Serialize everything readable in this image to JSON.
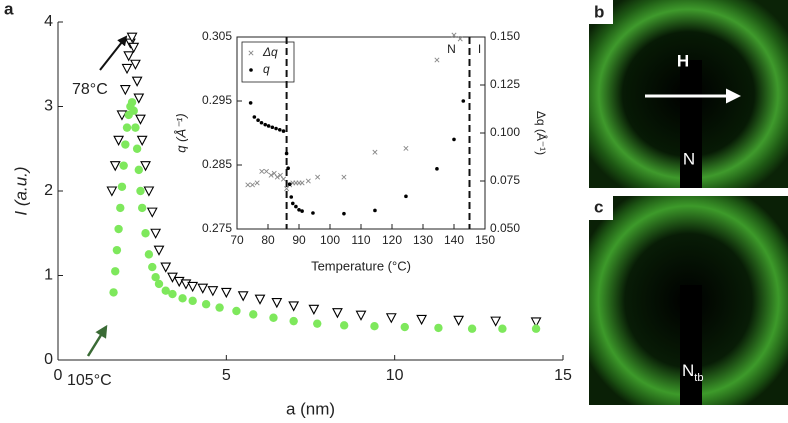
{
  "chart_data": [
    {
      "type": "scatter",
      "panel_label": "a",
      "x_label": "a (nm)",
      "y_label": "I (a.u.)",
      "xlim": [
        0,
        15
      ],
      "xticks": [
        0,
        5,
        10,
        15
      ],
      "ylim": [
        0,
        4
      ],
      "yticks": [
        0,
        1,
        2,
        3,
        4
      ],
      "series": [
        {
          "name": "78°C",
          "color": "#000000",
          "marker": "triangle-down",
          "x": [
            1.6,
            1.7,
            1.8,
            1.9,
            2.0,
            2.05,
            2.1,
            2.15,
            2.2,
            2.25,
            2.3,
            2.35,
            2.4,
            2.45,
            2.5,
            2.6,
            2.7,
            2.8,
            2.9,
            3.0,
            3.2,
            3.4,
            3.6,
            3.8,
            4.0,
            4.3,
            4.6,
            5.0,
            5.5,
            6.0,
            6.5,
            7.0,
            7.6,
            8.3,
            9.0,
            9.9,
            10.8,
            11.9,
            13.0,
            14.2
          ],
          "values": [
            2.0,
            2.3,
            2.6,
            2.9,
            3.2,
            3.45,
            3.6,
            3.75,
            3.82,
            3.7,
            3.5,
            3.3,
            3.1,
            2.85,
            2.6,
            2.3,
            2.0,
            1.75,
            1.5,
            1.3,
            1.1,
            0.98,
            0.93,
            0.9,
            0.87,
            0.85,
            0.82,
            0.8,
            0.76,
            0.72,
            0.68,
            0.64,
            0.6,
            0.56,
            0.53,
            0.5,
            0.48,
            0.47,
            0.46,
            0.45
          ]
        },
        {
          "name": "105°C",
          "color": "#7ee85c",
          "marker": "circle",
          "x": [
            1.65,
            1.7,
            1.75,
            1.8,
            1.85,
            1.9,
            1.95,
            2.0,
            2.05,
            2.1,
            2.15,
            2.2,
            2.25,
            2.3,
            2.35,
            2.4,
            2.45,
            2.5,
            2.6,
            2.7,
            2.8,
            2.9,
            3.0,
            3.2,
            3.4,
            3.7,
            4.0,
            4.4,
            4.8,
            5.3,
            5.8,
            6.4,
            7.0,
            7.7,
            8.5,
            9.4,
            10.3,
            11.3,
            12.3,
            13.2,
            14.2
          ],
          "values": [
            0.8,
            1.05,
            1.3,
            1.55,
            1.8,
            2.05,
            2.3,
            2.55,
            2.75,
            2.9,
            3.0,
            3.05,
            2.95,
            2.75,
            2.5,
            2.25,
            2.0,
            1.8,
            1.5,
            1.25,
            1.1,
            0.98,
            0.9,
            0.82,
            0.78,
            0.73,
            0.7,
            0.66,
            0.62,
            0.58,
            0.54,
            0.5,
            0.46,
            0.43,
            0.41,
            0.4,
            0.39,
            0.38,
            0.37,
            0.37,
            0.37
          ]
        }
      ]
    },
    {
      "type": "scatter",
      "x_label": "Temperature (°C)",
      "y_label": "q (Å⁻¹)",
      "y2_label": "Δq (Å⁻¹)",
      "xlim": [
        70,
        150
      ],
      "xticks": [
        70,
        80,
        90,
        100,
        110,
        120,
        130,
        140,
        150
      ],
      "ylim": [
        0.275,
        0.305
      ],
      "yticks": [
        0.275,
        0.285,
        0.295,
        0.305
      ],
      "y2lim": [
        0.05,
        0.15
      ],
      "y2ticks": [
        {
          "value": 0.05,
          "label": "0.050"
        },
        0.075,
        {
          "value": 0.1,
          "label": "0.100"
        },
        0.125,
        {
          "value": 0.15,
          "label": "0.150"
        }
      ],
      "transition_temps": [
        86,
        145
      ],
      "phase_labels": [
        "N",
        "I"
      ],
      "series": [
        {
          "name": "Δq",
          "color": "#888888",
          "marker": "x",
          "axis": "y2",
          "x": [
            73.5,
            75,
            76.5,
            78,
            79.5,
            81,
            82,
            83,
            84,
            85,
            86,
            87,
            88,
            89,
            90,
            91,
            93,
            96,
            104.5,
            114.5,
            124.5,
            134.5,
            140,
            142
          ],
          "values": [
            0.073,
            0.073,
            0.074,
            0.08,
            0.08,
            0.078,
            0.079,
            0.077,
            0.078,
            0.076,
            0.071,
            0.073,
            0.074,
            0.074,
            0.074,
            0.074,
            0.075,
            0.077,
            0.077,
            0.09,
            0.092,
            0.138,
            0.151,
            0.149
          ]
        },
        {
          "name": "q",
          "color": "#000000",
          "marker": "dot",
          "x": [
            74.4,
            75.6,
            76.8,
            77.9,
            79.1,
            80.2,
            81.4,
            82.6,
            83.8,
            85,
            86,
            86.5,
            87,
            87.5,
            88,
            89,
            90,
            91,
            94.5,
            104.5,
            114.5,
            124.5,
            134.5,
            140,
            143
          ],
          "values": [
            0.2947,
            0.2925,
            0.292,
            0.2916,
            0.2913,
            0.2911,
            0.2909,
            0.2907,
            0.2905,
            0.2903,
            0.2868,
            0.2845,
            0.282,
            0.28,
            0.279,
            0.2785,
            0.278,
            0.2778,
            0.2775,
            0.2774,
            0.2779,
            0.2801,
            0.2844,
            0.289,
            0.295
          ]
        }
      ]
    }
  ],
  "images": [
    {
      "label": "b",
      "texts": [
        {
          "text": "H"
        },
        {
          "text": "N"
        }
      ]
    },
    {
      "label": "c",
      "texts": [
        {
          "text": "N",
          "subscript": "tb"
        }
      ]
    }
  ]
}
